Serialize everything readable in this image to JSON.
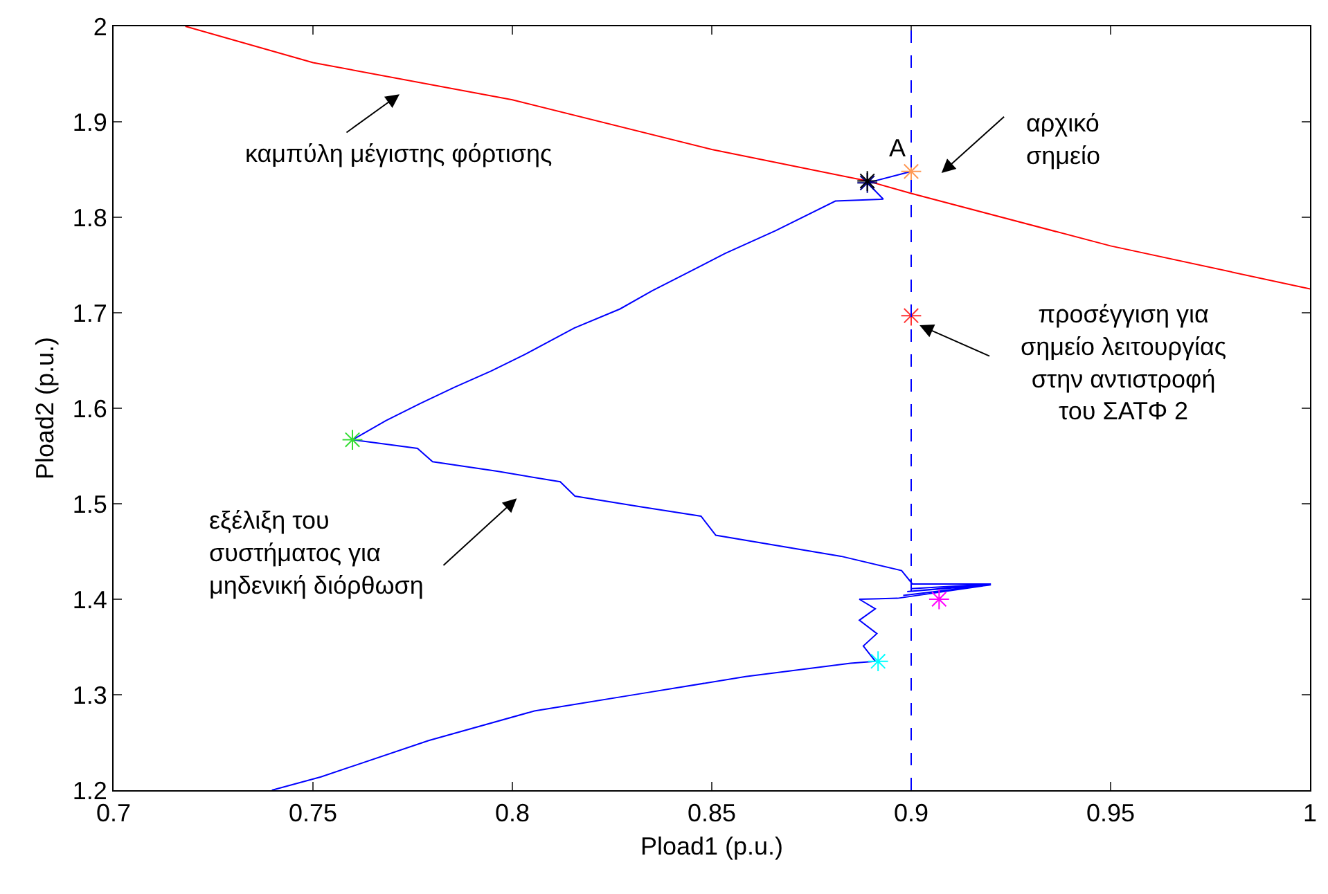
{
  "chart_data": {
    "type": "line",
    "xlabel": "Pload1 (p.u.)",
    "ylabel": "Pload2 (p.u.)",
    "xlim": [
      0.7,
      1
    ],
    "xticks": [
      0.7,
      0.75,
      0.8,
      0.85,
      0.9,
      0.95,
      1
    ],
    "ylim": [
      1.2,
      2
    ],
    "yticks": [
      1.2,
      1.3,
      1.4,
      1.5,
      1.6,
      1.7,
      1.8,
      1.9,
      2
    ],
    "grid": false,
    "line_style": "solid",
    "series": [
      {
        "color": "#ff0000",
        "x": [
          0.718,
          0.75,
          0.8,
          0.85,
          0.889,
          0.9,
          0.95,
          1.0
        ],
        "values": [
          2.0,
          1.962,
          1.923,
          1.871,
          1.838,
          1.825,
          1.77,
          1.725
        ]
      },
      {
        "color": "#0000ff",
        "x": [
          0.7397,
          0.752,
          0.779,
          0.8055,
          0.832,
          0.8585,
          0.8848,
          0.891,
          0.888,
          0.8914,
          0.887,
          0.891,
          0.887,
          0.8966,
          0.918,
          0.898,
          0.92,
          0.899,
          0.92,
          0.9,
          0.92,
          0.9003,
          0.8976,
          0.8824,
          0.851,
          0.8473,
          0.832,
          0.8157,
          0.812,
          0.7962,
          0.78,
          0.7762,
          0.7599,
          0.7683,
          0.7769,
          0.7855,
          0.7947,
          0.803,
          0.8155,
          0.827,
          0.835,
          0.843,
          0.8533,
          0.866,
          0.881,
          0.893,
          0.8895,
          0.889,
          0.9
        ],
        "values": [
          1.2,
          1.214,
          1.252,
          1.283,
          1.301,
          1.319,
          1.333,
          1.335,
          1.351,
          1.364,
          1.378,
          1.39,
          1.4,
          1.401,
          1.414,
          1.404,
          1.415,
          1.408,
          1.416,
          1.411,
          1.416,
          1.416,
          1.43,
          1.445,
          1.467,
          1.487,
          1.497,
          1.508,
          1.523,
          1.534,
          1.544,
          1.558,
          1.567,
          1.587,
          1.605,
          1.622,
          1.639,
          1.656,
          1.684,
          1.704,
          1.723,
          1.74,
          1.762,
          1.786,
          1.817,
          1.819,
          1.834,
          1.836,
          1.848
        ]
      },
      {
        "type": "scatter",
        "marker": "cross",
        "x": [
          0.9,
          0.889,
          0.889,
          0.9,
          0.7599,
          0.907,
          0.8917
        ],
        "values": [
          1.848,
          1.836,
          1.838,
          1.697,
          1.567,
          1.4,
          1.335
        ],
        "colors": [
          "#ff9955",
          "#000080",
          "#000000",
          "#ff3333",
          "#33dd33",
          "#ff00ff",
          "#00ffff"
        ]
      }
    ],
    "ref_lines": [
      {
        "axis": "x",
        "value": 0.9,
        "color": "#0000ff",
        "line_style": "dashed"
      }
    ],
    "annotations": [
      "καμπύλη μέγιστης φόρτισης",
      "A",
      "αρχικό\nσημείο",
      {
        "text": "προσέγγιση για\nσημείο λειτουργίας\nστην αντιστροφή\nτου ΣΑΤΦ 2",
        "x": 0.9021,
        "y": 1.687
      },
      "εξέλιξη του\nσυστήματος για\nμηδενική διόρθωση"
    ]
  }
}
